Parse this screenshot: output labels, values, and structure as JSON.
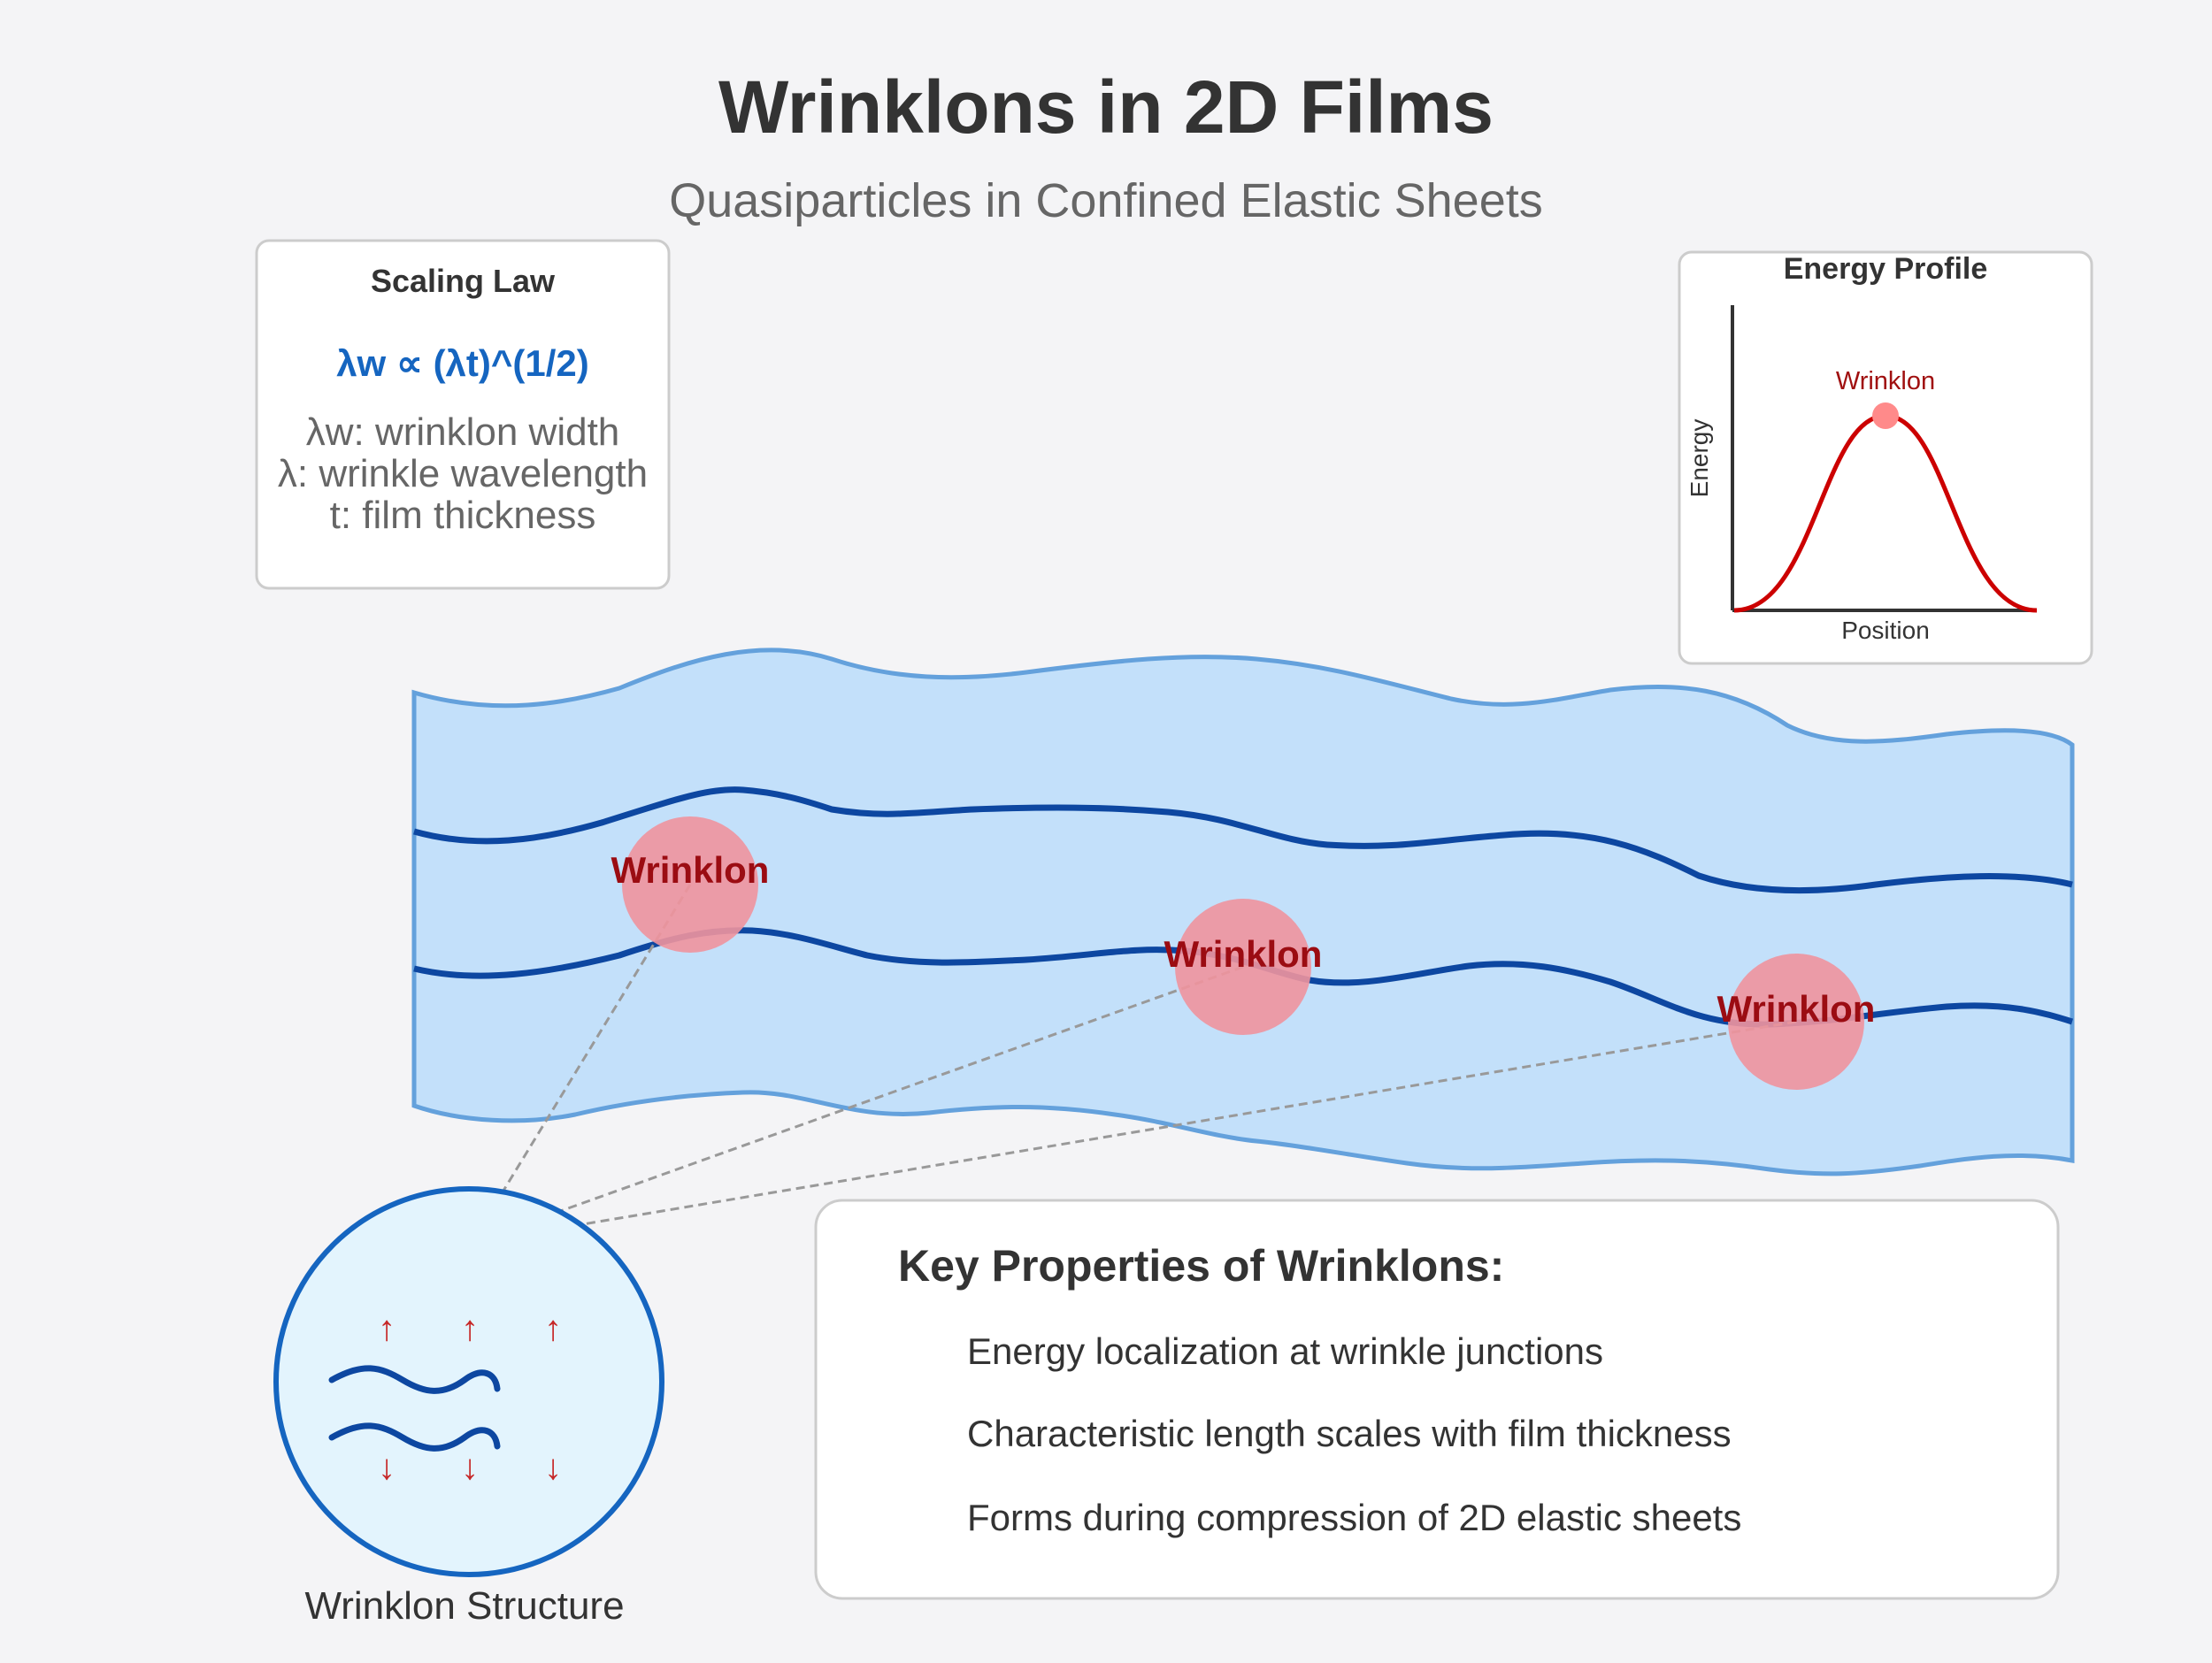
{
  "title": "Wrinklons in 2D Films",
  "subtitle": "Quasiparticles in Confined Elastic Sheets",
  "scaling_law": {
    "heading": "Scaling Law",
    "formula": "λw ∝ (λt)^(1/2)",
    "defs": [
      "λw: wrinklon width",
      "λ: wrinkle wavelength",
      "t: film thickness"
    ]
  },
  "energy_profile": {
    "heading": "Energy Profile",
    "peak_label": "Wrinklon",
    "ylabel": "Energy",
    "xlabel": "Position"
  },
  "sheet": {
    "wrinklon_labels": [
      "Wrinklon",
      "Wrinklon",
      "Wrinklon"
    ]
  },
  "structure": {
    "caption": "Wrinklon Structure",
    "up_arrow": "↑",
    "down_arrow": "↓"
  },
  "properties": {
    "heading": "Key Properties of Wrinklons:",
    "items": [
      "Energy localization at wrinkle junctions",
      "Characteristic length scales with film thickness",
      "Forms during compression of 2D elastic sheets"
    ]
  },
  "colors": {
    "title": "#333333",
    "subtitle": "#666666",
    "accent_blue": "#1565c0",
    "sheet_fill": "#c3e0fa",
    "sheet_edge": "#64a1dc",
    "wrinkle_line": "#0d47a1",
    "wrinklon_fill": "#f0949d",
    "wrinklon_text": "#9b0c12",
    "curve": "#cc0000",
    "arrow_red": "#c62828"
  }
}
